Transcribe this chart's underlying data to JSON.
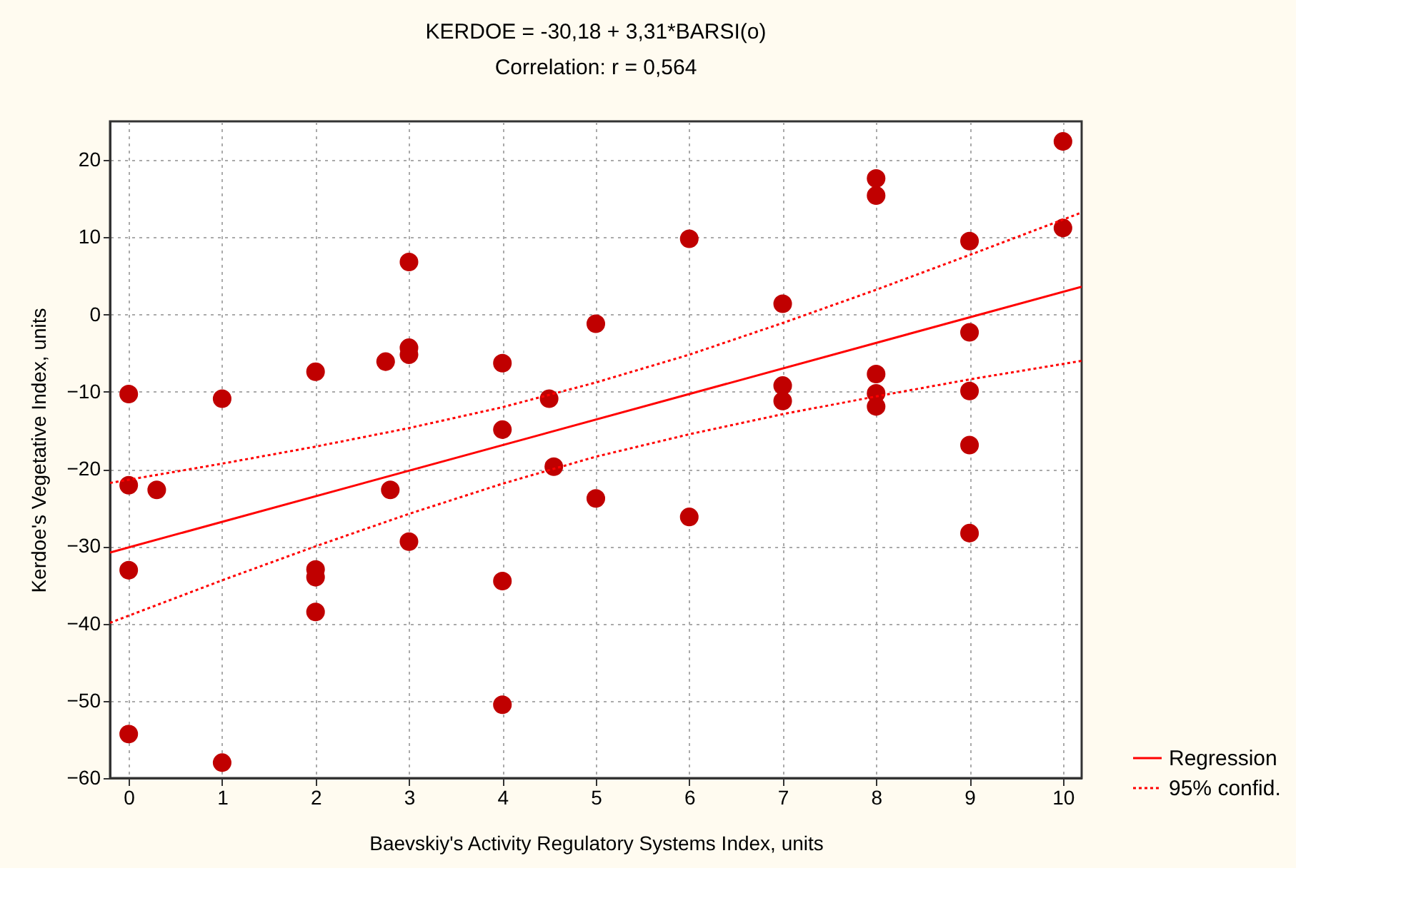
{
  "chart_data": {
    "type": "scatter",
    "title": "KERDOE = -30,18 + 3,31*BARSI(o)",
    "subtitle": "Correlation: r = 0,564",
    "xlabel": "Baevskiy's Activity Regulatory Systems Index, units",
    "ylabel": "Kerdoe's Vegetative Index, units",
    "xlim": [
      -0.2,
      10.2
    ],
    "ylim": [
      -60,
      25
    ],
    "xticks": [
      0,
      1,
      2,
      3,
      4,
      5,
      6,
      7,
      8,
      9,
      10
    ],
    "yticks": [
      -60,
      -50,
      -40,
      -30,
      -20,
      -10,
      0,
      10,
      20
    ],
    "grid": true,
    "legend": "bottom right",
    "series": [
      {
        "color": "#c00000",
        "marker": "circle",
        "x": [
          0,
          0,
          0,
          0,
          0.3,
          1,
          1,
          2,
          2,
          2,
          2,
          2.75,
          3,
          3,
          3,
          2.8,
          3,
          4,
          4,
          4,
          4,
          4.5,
          4.55,
          5,
          5,
          6,
          6,
          7,
          7,
          7,
          8,
          8,
          8,
          8,
          8,
          9,
          9,
          9,
          9,
          9,
          10,
          10
        ],
        "values": [
          -10.3,
          -22.1,
          -33.1,
          -54.3,
          -22.7,
          -10.9,
          -58.0,
          -7.4,
          -33.0,
          -34.0,
          -38.5,
          -6.1,
          6.8,
          -4.3,
          -5.2,
          -22.7,
          -29.4,
          -6.3,
          -14.9,
          -34.5,
          -50.5,
          -10.9,
          -19.7,
          -1.2,
          -23.8,
          9.8,
          -26.2,
          1.4,
          -9.2,
          -11.2,
          17.6,
          15.4,
          -7.7,
          -10.2,
          -11.9,
          9.5,
          -2.3,
          -9.9,
          -16.9,
          -28.3,
          22.4,
          11.2
        ]
      },
      {
        "type": "line",
        "name": "Regression",
        "color": "#ff0000",
        "line_style": "solid",
        "x": [
          -0.2,
          10.2
        ],
        "values": [
          -30.8,
          3.6
        ]
      },
      {
        "type": "line",
        "name": "95% confid.",
        "color": "#ff0000",
        "line_style": "dotted",
        "x": [
          -0.2,
          1,
          2,
          3,
          4,
          5,
          6,
          7,
          8,
          9,
          10.2
        ],
        "values": [
          -21.8,
          -19.3,
          -17.1,
          -14.7,
          -12.0,
          -8.8,
          -5.2,
          -1.1,
          3.2,
          7.7,
          13.2
        ]
      },
      {
        "type": "line",
        "color": "#ff0000",
        "line_style": "dotted",
        "x": [
          -0.2,
          1,
          2,
          3,
          4,
          5,
          6,
          7,
          8,
          9,
          10.2
        ],
        "values": [
          -39.9,
          -34.4,
          -30.0,
          -25.8,
          -21.9,
          -18.4,
          -15.5,
          -12.9,
          -10.6,
          -8.4,
          -6.0
        ]
      }
    ]
  }
}
